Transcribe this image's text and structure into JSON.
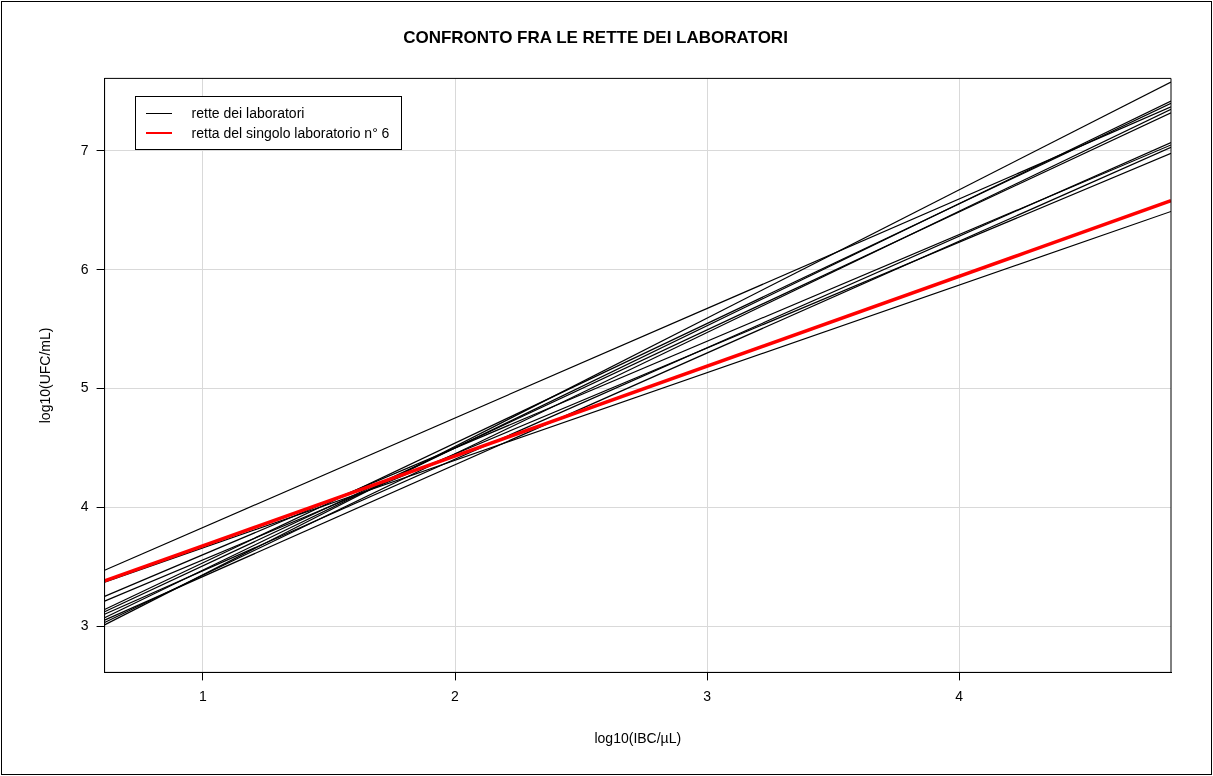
{
  "chart_data": {
    "type": "line",
    "title": "CONFRONTO FRA LE RETTE DEI LABORATORI",
    "xlabel": "log10(IBC/µL)",
    "ylabel": "log10(UFC/mL)",
    "x": [
      0.61,
      4.84
    ],
    "xlim": [
      0.61,
      4.84
    ],
    "ylim": [
      2.61,
      7.61
    ],
    "xticks": [
      1,
      2,
      3,
      4
    ],
    "yticks": [
      3,
      4,
      5,
      6,
      7
    ],
    "grid": true,
    "legend": "top left",
    "marker": "none",
    "line_style": "solid",
    "series": [
      {
        "name": "rette dei laboratori",
        "color": "#000000",
        "values": [
          3.47,
          7.37
        ]
      },
      {
        "color": "#000000",
        "values": [
          3.37,
          6.49
        ]
      },
      {
        "color": "#000000",
        "values": [
          3.01,
          7.58
        ]
      },
      {
        "color": "#000000",
        "values": [
          3.25,
          7.05
        ]
      },
      {
        "color": "#000000",
        "values": [
          3.21,
          6.98
        ]
      },
      {
        "color": "#000000",
        "values": [
          3.14,
          7.4
        ]
      },
      {
        "color": "#000000",
        "values": [
          3.12,
          7.32
        ]
      },
      {
        "color": "#000000",
        "values": [
          3.1,
          7.07
        ]
      },
      {
        "color": "#000000",
        "values": [
          3.07,
          7.42
        ]
      },
      {
        "color": "#000000",
        "values": [
          3.05,
          7.03
        ]
      },
      {
        "color": "#000000",
        "values": [
          3.03,
          7.35
        ]
      },
      {
        "name": "retta del singolo laboratorio n° 6",
        "color": "#ff0000",
        "values": [
          3.38,
          6.58
        ]
      }
    ]
  }
}
